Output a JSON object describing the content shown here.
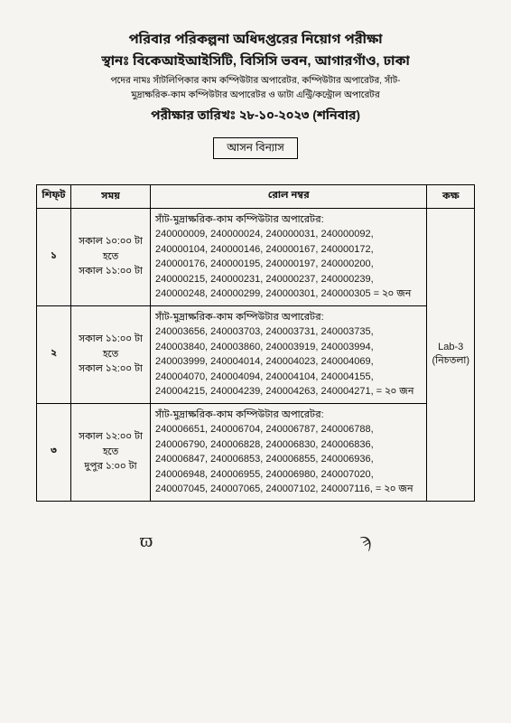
{
  "header": {
    "title1": "পরিবার পরিকল্পনা অধিদপ্তরের নিয়োগ পরীক্ষা",
    "title2": "স্থানঃ বিকেআইআইসিটি, বিসিসি ভবন, আগারগাঁও, ঢাকা",
    "subtitle1": "পদের নামঃ সাঁটলিপিকার কাম কম্পিউটার অপারেটর, কম্পিউটার অপারেটর, সাঁট-",
    "subtitle2": "মুদ্রাক্ষরিক-কাম কম্পিউটার অপারেটর ও ডাটা এন্ট্রি/কন্ট্রোল অপারেটর",
    "examdate": "পরীক্ষার তারিখঃ ২৮-১০-২০২৩ (শনিবার)",
    "seatplan": "আসন বিন্যাস"
  },
  "table": {
    "headers": {
      "shift": "শিফ্‌ট",
      "time": "সময়",
      "roll": "রোল নম্বর",
      "room": "কক্ষ"
    },
    "rows": [
      {
        "shift": "১",
        "time": "সকাল ১০:০০ টা\nহতে\nসকাল ১১:০০ টা",
        "roll_header": "সাঁট-মুদ্রাক্ষরিক-কাম কম্পিউটার অপারেটর:",
        "rolls": "240000009, 240000024, 240000031, 240000092, 240000104, 240000146, 240000167, 240000172, 240000176, 240000195, 240000197, 240000200, 240000215, 240000231, 240000237, 240000239, 240000248, 240000299, 240000301, 240000305 = ২০ জন"
      },
      {
        "shift": "২",
        "time": "সকাল ১১:০০ টা\nহতে\nসকাল ১২:০০ টা",
        "roll_header": "সাঁট-মুদ্রাক্ষরিক-কাম কম্পিউটার অপারেটর:",
        "rolls": "240003656, 240003703, 240003731, 240003735, 240003840, 240003860, 240003919, 240003994, 240003999, 240004014, 240004023, 240004069, 240004070, 240004094, 240004104, 240004155, 240004215, 240004239, 240004263, 240004271, = ২০ জন"
      },
      {
        "shift": "৩",
        "time": "সকাল ১২:০০ টা\nহতে\nদুপুর ১:০০ টা",
        "roll_header": "সাঁট-মুদ্রাক্ষরিক-কাম কম্পিউটার অপারেটর:",
        "rolls": "240006651, 240006704, 240006787, 240006788, 240006790, 240006828, 240006830, 240006836, 240006847, 240006853, 240006855, 240006936, 240006948, 240006955, 240006980, 240007020, 240007045, 240007065, 240007102, 240007116, = ২০ জন"
      }
    ],
    "room": "Lab-3\n(নিচতলা)"
  },
  "signatures": {
    "left": "ϖ",
    "right": "ϡ"
  }
}
